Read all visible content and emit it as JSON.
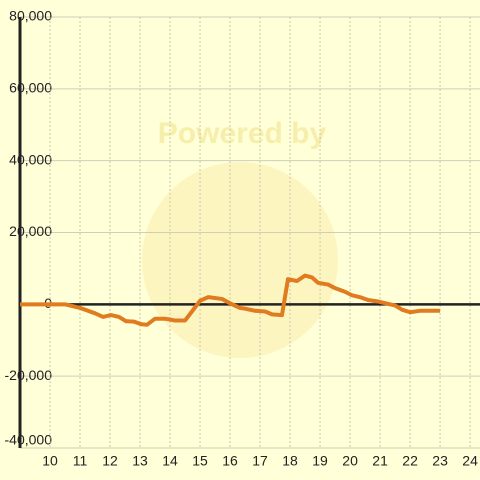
{
  "chart_data": {
    "type": "line",
    "watermark": "Powered by",
    "x": [
      9.0,
      10.5,
      11.0,
      11.5,
      11.77,
      12.03,
      12.3,
      12.53,
      12.8,
      13.03,
      13.23,
      13.5,
      13.83,
      14.17,
      14.5,
      14.73,
      15.0,
      15.27,
      15.73,
      16.07,
      16.33,
      16.5,
      16.83,
      17.17,
      17.4,
      17.73,
      17.93,
      18.23,
      18.5,
      18.73,
      18.93,
      19.27,
      19.5,
      19.83,
      20.07,
      20.33,
      20.6,
      20.93,
      21.33,
      21.5,
      21.73,
      22.0,
      22.33,
      23.0
    ],
    "series": [
      {
        "color": "#e07b20",
        "values": [
          0,
          0,
          -1000,
          -2500,
          -3500,
          -3000,
          -3500,
          -4700,
          -4800,
          -5500,
          -5700,
          -4000,
          -4000,
          -4500,
          -4500,
          -2000,
          1000,
          2000,
          1500,
          0,
          -1000,
          -1200,
          -1800,
          -2000,
          -2800,
          -3000,
          7000,
          6500,
          8000,
          7500,
          6000,
          5500,
          4500,
          3500,
          2500,
          2000,
          1200,
          800,
          0,
          -300,
          -1500,
          -2200,
          -1800,
          -1800
        ]
      }
    ],
    "xlim": [
      9,
      24.33
    ],
    "xticks": [
      10,
      11,
      12,
      13,
      14,
      15,
      16,
      17,
      18,
      19,
      20,
      21,
      22,
      23,
      24
    ],
    "ylim": [
      -40000,
      80000
    ],
    "yticks": [
      {
        "value": -40000,
        "label": "-40,000"
      },
      {
        "value": -20000,
        "label": "-20,000"
      },
      0,
      {
        "value": 20000,
        "label": "20,000"
      },
      {
        "value": 40000,
        "label": "40,000"
      },
      {
        "value": 60000,
        "label": "60,000"
      },
      {
        "value": 80000,
        "label": "80,000"
      }
    ],
    "grid": true
  }
}
